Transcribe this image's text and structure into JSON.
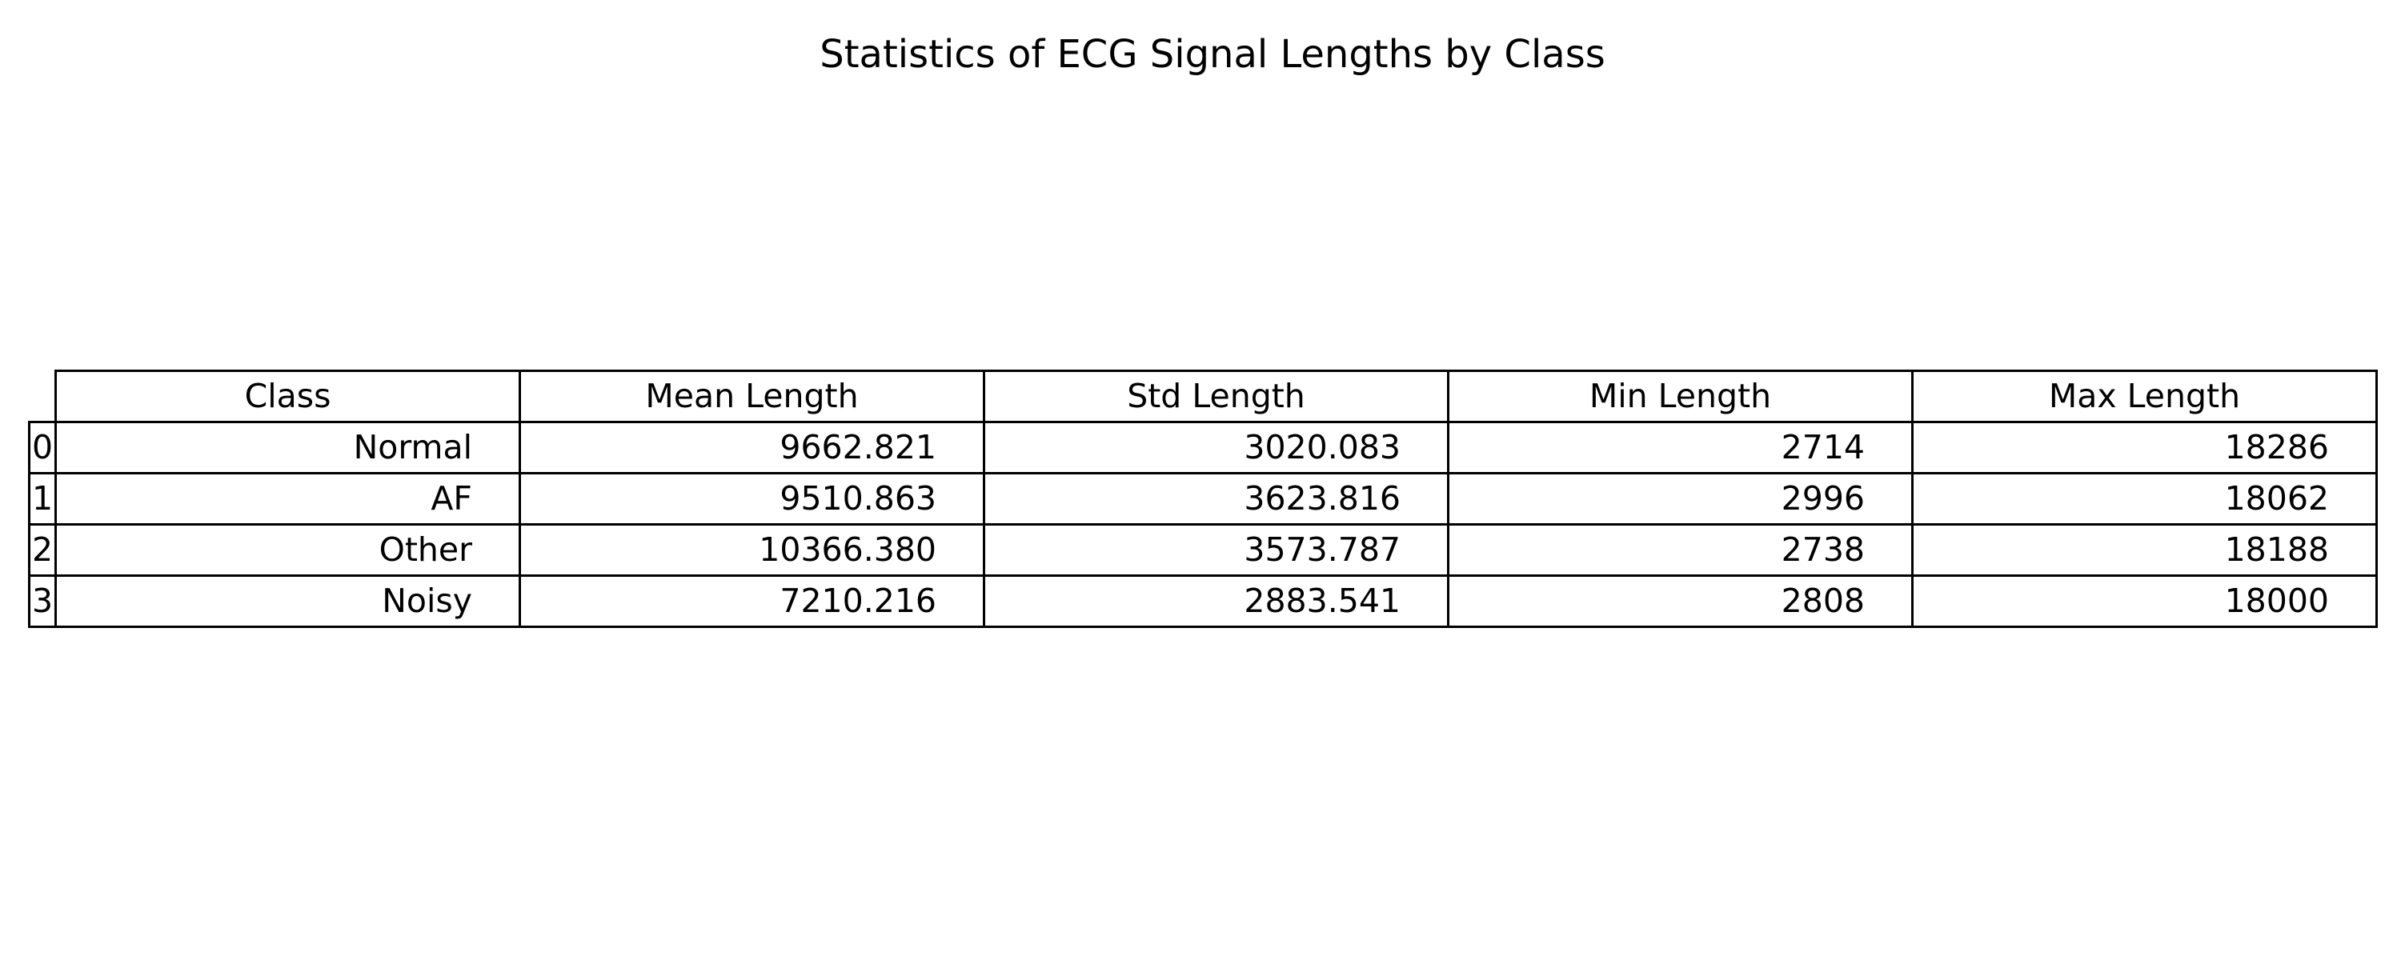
{
  "chart_data": {
    "type": "table",
    "title": "Statistics of ECG Signal Lengths by Class",
    "columns": [
      "Class",
      "Mean Length",
      "Std Length",
      "Min Length",
      "Max Length"
    ],
    "index": [
      "0",
      "1",
      "2",
      "3"
    ],
    "rows": [
      [
        "Normal",
        "9662.821",
        "3020.083",
        "2714",
        "18286"
      ],
      [
        "AF",
        "9510.863",
        "3623.816",
        "2996",
        "18062"
      ],
      [
        "Other",
        "10366.380",
        "3573.787",
        "2738",
        "18188"
      ],
      [
        "Noisy",
        "7210.216",
        "2883.541",
        "2808",
        "18000"
      ]
    ]
  }
}
